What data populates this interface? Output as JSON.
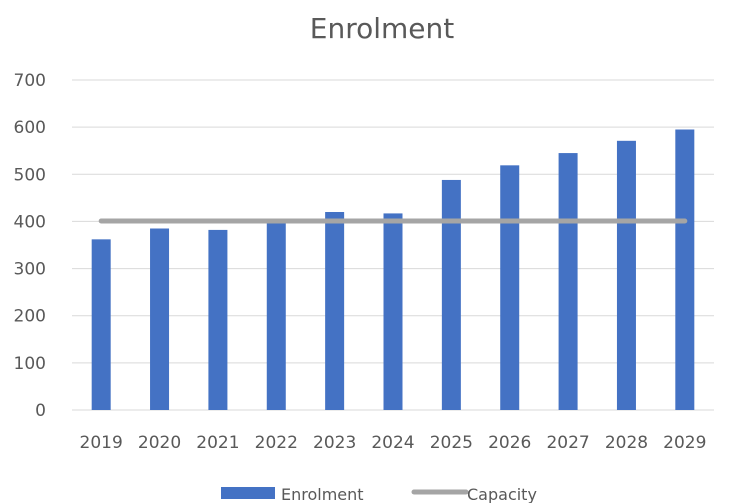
{
  "chart_data": {
    "type": "bar",
    "title": "Enrolment",
    "categories": [
      "2019",
      "2020",
      "2021",
      "2022",
      "2023",
      "2024",
      "2025",
      "2026",
      "2027",
      "2028",
      "2029"
    ],
    "series": [
      {
        "name": "Enrolment",
        "type": "bar",
        "color": "#4472c4",
        "values": [
          362,
          385,
          382,
          400,
          420,
          417,
          488,
          519,
          545,
          571,
          595
        ]
      },
      {
        "name": "Capacity",
        "type": "line",
        "color": "#a5a5a5",
        "values": [
          401,
          401,
          401,
          401,
          401,
          401,
          401,
          401,
          401,
          401,
          401
        ]
      }
    ],
    "ylim": [
      0,
      700
    ],
    "yticks": [
      0,
      100,
      200,
      300,
      400,
      500,
      600,
      700
    ],
    "grid": true,
    "legend": "bottom"
  }
}
